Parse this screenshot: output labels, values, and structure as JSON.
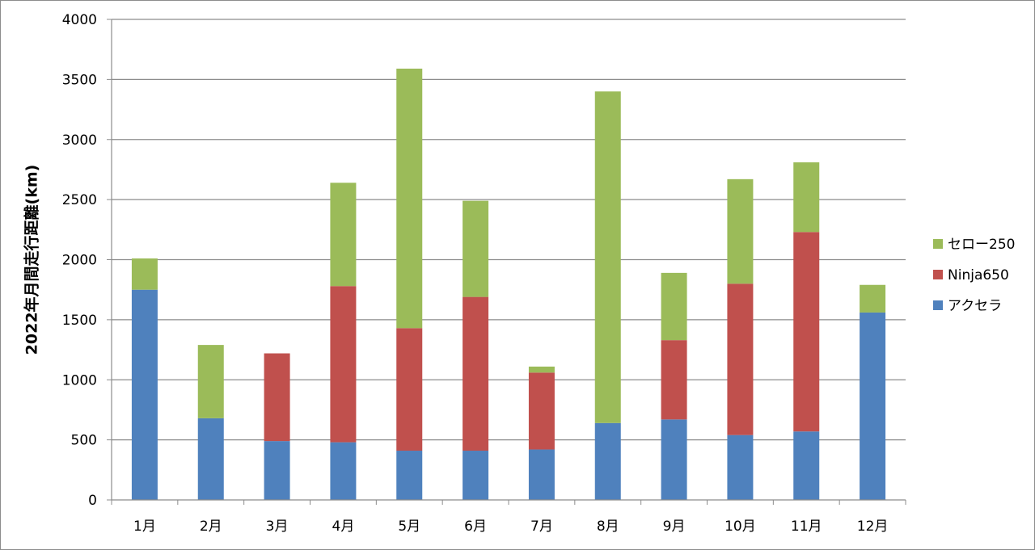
{
  "chart_data": {
    "type": "bar",
    "stacked": true,
    "title": "",
    "xlabel": "",
    "ylabel": "2022年月間走行距離(km)",
    "ylim": [
      0,
      4000
    ],
    "yticks": [
      0,
      500,
      1000,
      1500,
      2000,
      2500,
      3000,
      3500,
      4000
    ],
    "grid": true,
    "legend_position": "right",
    "categories": [
      "1月",
      "2月",
      "3月",
      "4月",
      "5月",
      "6月",
      "7月",
      "8月",
      "9月",
      "10月",
      "11月",
      "12月"
    ],
    "series": [
      {
        "name": "アクセラ",
        "color": "#4f81bd",
        "values": [
          1750,
          680,
          490,
          480,
          410,
          410,
          420,
          640,
          670,
          540,
          570,
          1560
        ]
      },
      {
        "name": "Ninja650",
        "color": "#c0504d",
        "values": [
          0,
          0,
          730,
          1300,
          1020,
          1280,
          640,
          0,
          660,
          1260,
          1660,
          0
        ]
      },
      {
        "name": "セロー250",
        "color": "#9bbb59",
        "values": [
          260,
          610,
          0,
          860,
          2160,
          800,
          50,
          2760,
          560,
          870,
          580,
          230
        ]
      }
    ]
  }
}
